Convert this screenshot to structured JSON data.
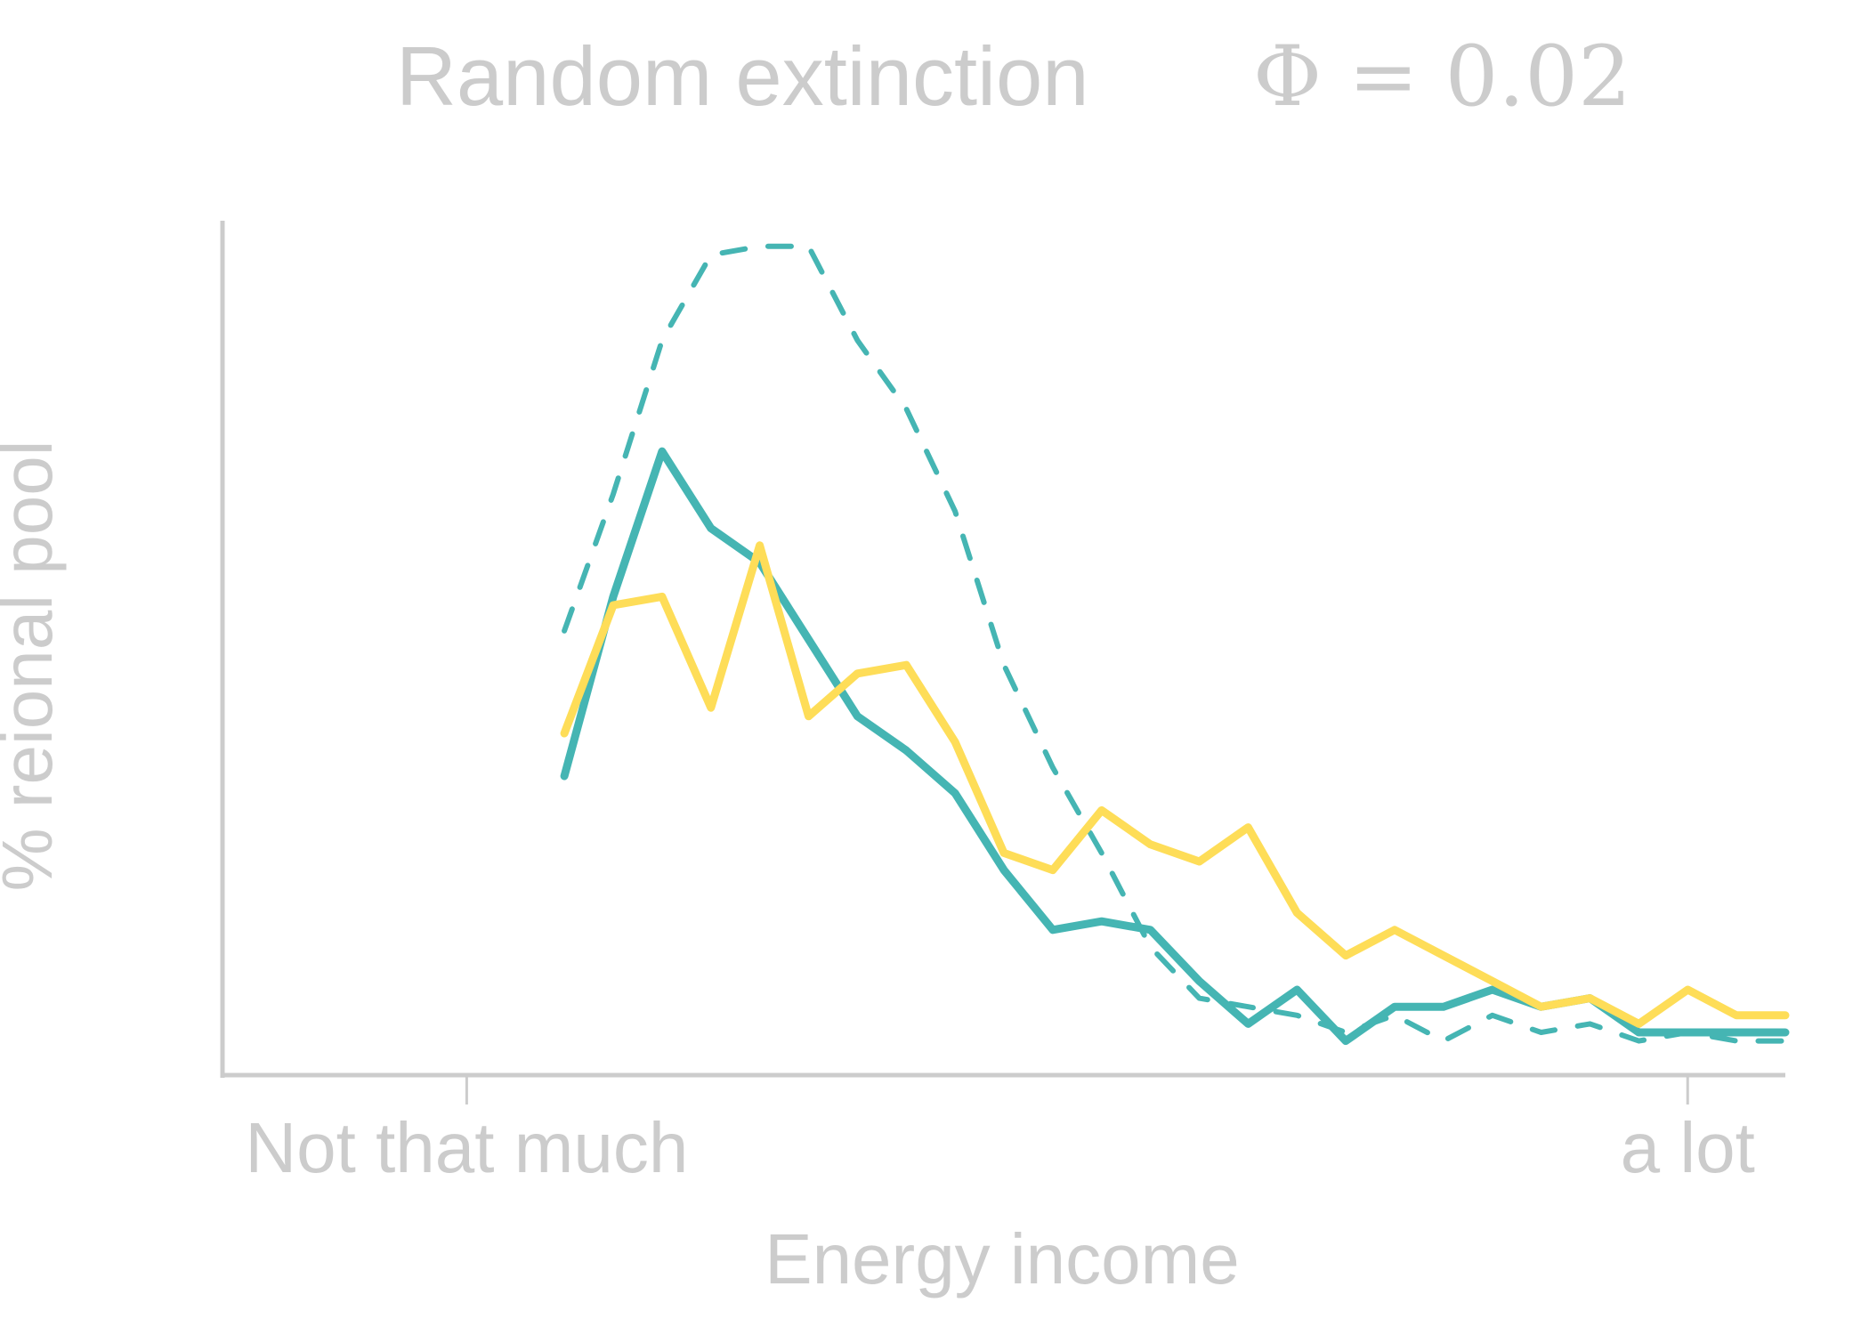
{
  "chart_data": {
    "type": "line",
    "title": "Random extinction",
    "subtitle": "Φ = 0.02",
    "xlabel": "Energy income",
    "ylabel": "% reional pool",
    "xlim": [
      -5,
      27
    ],
    "ylim": [
      0,
      100
    ],
    "x_ticks": [
      {
        "value": 0,
        "label": "Not that much"
      },
      {
        "value": 25,
        "label": "a lot"
      }
    ],
    "grid": false,
    "legend": "none",
    "x": [
      2,
      3,
      4,
      5,
      6,
      7,
      8,
      9,
      10,
      11,
      12,
      13,
      14,
      15,
      16,
      17,
      18,
      19,
      20,
      21,
      22,
      23,
      24,
      25,
      26,
      27
    ],
    "series": [
      {
        "color": "#45b5b3",
        "style": "dashed",
        "values": [
          52,
          68,
          86,
          96,
          97,
          97,
          86,
          78,
          66,
          48,
          36,
          26,
          15,
          9,
          8,
          7,
          5,
          7,
          4,
          7,
          5,
          6,
          4,
          5,
          4,
          4
        ]
      },
      {
        "color": "#45b5b3",
        "style": "solid",
        "values": [
          35,
          56,
          73,
          64,
          60,
          51,
          42,
          38,
          33,
          24,
          17,
          18,
          17,
          11,
          6,
          10,
          4,
          8,
          8,
          10,
          8,
          9,
          5,
          5,
          5,
          5
        ]
      },
      {
        "color": "#fedd58",
        "style": "solid",
        "values": [
          40,
          55,
          56,
          43,
          62,
          42,
          47,
          48,
          39,
          26,
          24,
          31,
          27,
          25,
          29,
          19,
          14,
          17,
          14,
          11,
          8,
          9,
          6,
          10,
          7,
          7
        ]
      }
    ]
  }
}
